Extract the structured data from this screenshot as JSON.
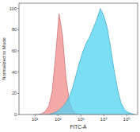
{
  "chart_data": {
    "type": "area",
    "x_label": "FITC-A",
    "y_label": "Normalized to Mode",
    "log": "x",
    "grid": false,
    "x": [
      10,
      14,
      20,
      28,
      40,
      56,
      79,
      112,
      158,
      224,
      316,
      447,
      631,
      891,
      1259,
      1778,
      2512,
      3548,
      5012,
      7079,
      10000,
      14125,
      19953,
      28184,
      39811,
      56234,
      79433,
      112202,
      158489,
      223872
    ],
    "series": [
      {
        "color": "#f28b8b",
        "values": [
          0,
          0,
          1,
          3,
          8,
          22,
          55,
          95,
          75,
          35,
          12,
          4,
          1,
          0,
          0,
          0,
          0,
          0,
          0,
          0,
          0,
          0,
          0,
          0,
          0,
          0,
          0,
          0,
          0,
          0
        ]
      },
      {
        "color": "#4fd3f2",
        "values": [
          0,
          0,
          0,
          0,
          0,
          1,
          2,
          4,
          7,
          11,
          17,
          26,
          38,
          50,
          60,
          68,
          74,
          82,
          90,
          100,
          93,
          82,
          63,
          42,
          24,
          11,
          5,
          2,
          1,
          0
        ]
      }
    ],
    "xlim": [
      2,
      300000
    ],
    "xticks": [
      {
        "value": 10,
        "label": "10¹"
      },
      {
        "value": 100,
        "label": "10²"
      },
      {
        "value": 1000,
        "label": "10³"
      },
      {
        "value": 10000,
        "label": "10⁴"
      },
      {
        "value": 100000,
        "label": "10⁵"
      }
    ],
    "ylim": [
      0,
      105
    ],
    "yticks": [
      0,
      20,
      40,
      60,
      80,
      100
    ]
  }
}
